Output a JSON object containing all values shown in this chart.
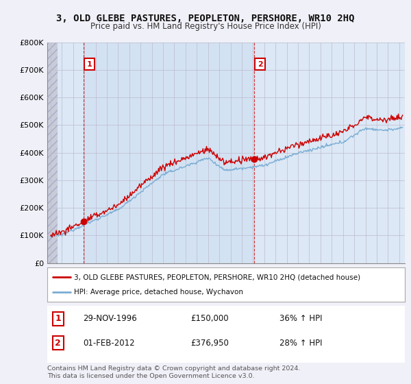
{
  "title": "3, OLD GLEBE PASTURES, PEOPLETON, PERSHORE, WR10 2HQ",
  "subtitle": "Price paid vs. HM Land Registry's House Price Index (HPI)",
  "ylim": [
    0,
    800000
  ],
  "yticks": [
    0,
    100000,
    200000,
    300000,
    400000,
    500000,
    600000,
    700000,
    800000
  ],
  "ytick_labels": [
    "£0",
    "£100K",
    "£200K",
    "£300K",
    "£400K",
    "£500K",
    "£600K",
    "£700K",
    "£800K"
  ],
  "price_color": "#cc0000",
  "hpi_color": "#7aadd4",
  "marker1_x": 1996.92,
  "marker1_y": 150000,
  "marker2_x": 2012.08,
  "marker2_y": 376950,
  "point1_label": "29-NOV-1996",
  "point1_price": "£150,000",
  "point1_hpi": "36% ↑ HPI",
  "point2_label": "01-FEB-2012",
  "point2_price": "£376,950",
  "point2_hpi": "28% ↑ HPI",
  "legend_line1": "3, OLD GLEBE PASTURES, PEOPLETON, PERSHORE, WR10 2HQ (detached house)",
  "legend_line2": "HPI: Average price, detached house, Wychavon",
  "footer": "Contains HM Land Registry data © Crown copyright and database right 2024.\nThis data is licensed under the Open Government Licence v3.0.",
  "background_color": "#f0f0f8",
  "plot_bg_color": "#dce8f5",
  "grid_color": "#bbbbcc",
  "xlim_left": 1993.7,
  "xlim_right": 2025.5
}
